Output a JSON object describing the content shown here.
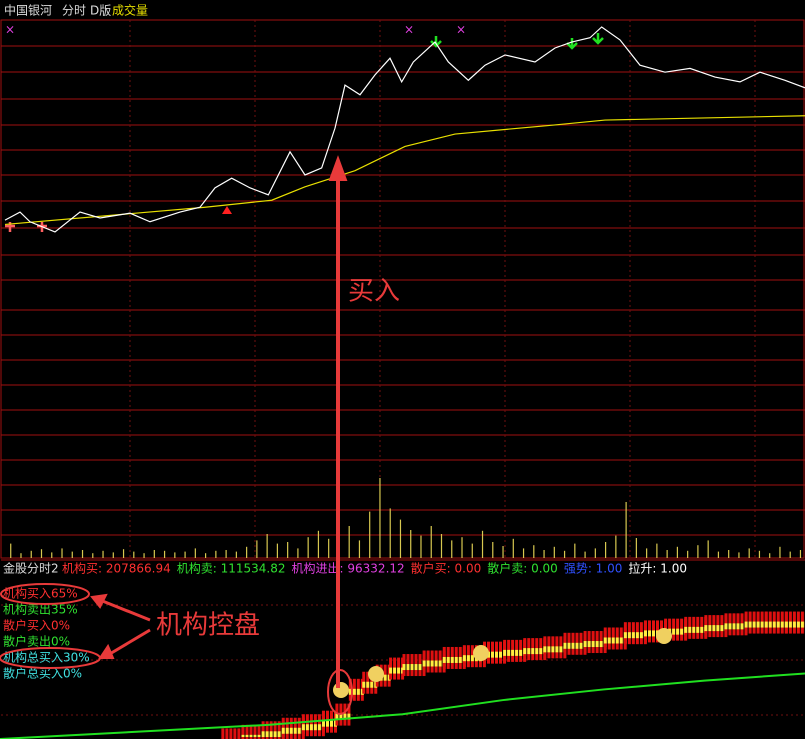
{
  "header": {
    "name": "中国银河",
    "mode": "分时",
    "version": "D版",
    "volume_label": "成交量"
  },
  "price_chart": {
    "type": "line",
    "xlim": [
      0,
      240
    ],
    "ylim": [
      0,
      100
    ],
    "price": {
      "x": [
        0,
        4.5,
        7.5,
        15,
        22.5,
        28.5,
        37.5,
        43.5,
        52.5,
        58.5,
        63,
        68,
        73.5,
        79,
        85.5,
        90,
        95,
        99,
        102,
        106.5,
        111,
        115.5,
        119,
        122.5,
        129,
        133,
        139,
        144,
        150,
        159,
        165,
        170,
        175.5,
        179,
        184.5,
        190.5,
        198,
        205.5,
        213,
        220.5,
        226.5,
        234,
        240
      ],
      "values": [
        62.8,
        64.3,
        62.5,
        60.6,
        64.3,
        63.2,
        64.1,
        62.5,
        64.3,
        65.2,
        68.8,
        70.6,
        68.8,
        67.5,
        75.5,
        71.2,
        72.5,
        79.9,
        87.9,
        86.1,
        89.8,
        92.9,
        88.5,
        92.2,
        95.9,
        92.2,
        88.8,
        91.6,
        93.5,
        92.2,
        94.8,
        95.9,
        96.7,
        98.7,
        96.3,
        91.6,
        90.3,
        91.0,
        89.4,
        88.5,
        90.3,
        88.8,
        87.4
      ],
      "color": "#ffffff"
    },
    "average": {
      "x": [
        0,
        60,
        80,
        90,
        105,
        120,
        135,
        165,
        180,
        240
      ],
      "values": [
        62.0,
        65.2,
        66.5,
        69,
        72,
        76.5,
        78.8,
        80.5,
        81.4,
        82.2
      ],
      "color": "#e8e000"
    }
  },
  "volume_chart": {
    "type": "bar",
    "ylim": [
      0,
      100
    ],
    "color": "#d8c850",
    "values": [
      18,
      6,
      9,
      11,
      7,
      12,
      8,
      10,
      6,
      9,
      7,
      11,
      8,
      6,
      10,
      9,
      7,
      8,
      12,
      6,
      9,
      10,
      8,
      14,
      22,
      30,
      18,
      20,
      12,
      26,
      34,
      24,
      16,
      40,
      22,
      58,
      100,
      62,
      48,
      35,
      28,
      40,
      30,
      22,
      26,
      18,
      34,
      20,
      15,
      24,
      12,
      16,
      10,
      14,
      9,
      18,
      8,
      12,
      20,
      28,
      70,
      25,
      12,
      18,
      10,
      14,
      9,
      16,
      22,
      8,
      10,
      7,
      12,
      9,
      6,
      14,
      8,
      10
    ],
    "color_hi": "#d8c850"
  },
  "indicator": {
    "title": "金股分时2",
    "stats": [
      {
        "text": "机构买: 207866.94",
        "color": "#ff3030"
      },
      {
        "text": "机构卖: 111534.82",
        "color": "#30e030"
      },
      {
        "text": "机构进出: 96332.12",
        "color": "#e040e0"
      },
      {
        "text": "散户买: 0.00",
        "color": "#ff3030"
      },
      {
        "text": "散户卖: 0.00",
        "color": "#30e030"
      },
      {
        "text": "强势: 1.00",
        "color": "#3050ff"
      },
      {
        "text": "拉升: 1.00",
        "color": "#ffffff"
      }
    ],
    "legend": [
      {
        "text": "机构买入65%",
        "color": "#ff3030"
      },
      {
        "text": "机构卖出35%",
        "color": "#30e030"
      },
      {
        "text": "散户买入0%",
        "color": "#ff3030"
      },
      {
        "text": "散户卖出0%",
        "color": "#30e030"
      },
      {
        "text": "机构总买入30%",
        "color": "#40e0e0"
      },
      {
        "text": "散户总买入0%",
        "color": "#40e0e0"
      }
    ],
    "xlim": [
      0,
      240
    ],
    "ylim": [
      0,
      100
    ],
    "buy": {
      "x": [
        66,
        72,
        78,
        84,
        90,
        96,
        100,
        104,
        108,
        112,
        116,
        120,
        126,
        132,
        138,
        144,
        150,
        156,
        162,
        168,
        174,
        180,
        186,
        192,
        198,
        204,
        210,
        216,
        222,
        228,
        234,
        240
      ],
      "values": [
        6,
        8,
        10,
        12,
        14,
        16,
        20,
        34,
        38,
        42,
        46,
        48,
        50,
        52,
        53,
        55,
        56,
        57,
        58,
        60,
        61,
        63,
        66,
        67,
        68,
        69,
        70,
        71,
        72,
        72,
        72,
        72
      ],
      "color": "#e01010",
      "inner": "#ffee40"
    },
    "green": {
      "x": [
        0,
        40,
        80,
        100,
        120,
        150,
        180,
        210,
        240
      ],
      "values": [
        0,
        4,
        8,
        11,
        14,
        22,
        28,
        33,
        37
      ],
      "color": "#20e020"
    }
  },
  "annotations": {
    "buy": "买入",
    "control": "机构控盘"
  }
}
